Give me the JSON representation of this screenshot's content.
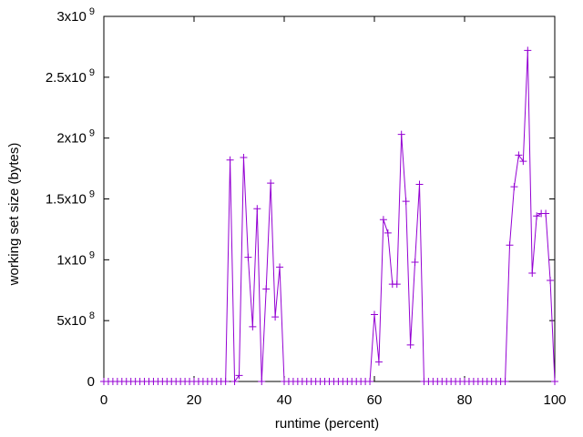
{
  "chart_data": {
    "type": "line",
    "title": "",
    "xlabel": "runtime (percent)",
    "ylabel": "working set size (bytes)",
    "xlim": [
      0,
      100
    ],
    "ylim": [
      0,
      3000000000
    ],
    "grid": false,
    "legend": "none",
    "color": "#9400d3",
    "marker": "plus",
    "x_ticks": [
      {
        "value": 0,
        "label": "0"
      },
      {
        "value": 20,
        "label": "20"
      },
      {
        "value": 40,
        "label": "40"
      },
      {
        "value": 60,
        "label": "60"
      },
      {
        "value": 80,
        "label": "80"
      },
      {
        "value": 100,
        "label": "100"
      }
    ],
    "y_ticks": [
      {
        "value": 0,
        "mantissa": "0",
        "exponent": ""
      },
      {
        "value": 500000000,
        "mantissa": "5x10",
        "exponent": "8"
      },
      {
        "value": 1000000000,
        "mantissa": "1x10",
        "exponent": "9"
      },
      {
        "value": 1500000000,
        "mantissa": "1.5x10",
        "exponent": "9"
      },
      {
        "value": 2000000000,
        "mantissa": "2x10",
        "exponent": "9"
      },
      {
        "value": 2500000000,
        "mantissa": "2.5x10",
        "exponent": "9"
      },
      {
        "value": 3000000000,
        "mantissa": "3x10",
        "exponent": "9"
      }
    ],
    "series": [
      {
        "x": [
          0,
          1,
          2,
          3,
          4,
          5,
          6,
          7,
          8,
          9,
          10,
          11,
          12,
          13,
          14,
          15,
          16,
          17,
          18,
          19,
          20,
          21,
          22,
          23,
          24,
          25,
          26,
          27,
          28,
          29,
          30,
          31,
          32,
          33,
          34,
          35,
          36,
          37,
          38,
          39,
          40,
          41,
          42,
          43,
          44,
          45,
          46,
          47,
          48,
          49,
          50,
          51,
          52,
          53,
          54,
          55,
          56,
          57,
          58,
          59,
          60,
          61,
          62,
          63,
          64,
          65,
          66,
          67,
          68,
          69,
          70,
          71,
          72,
          73,
          74,
          75,
          76,
          77,
          78,
          79,
          80,
          81,
          82,
          83,
          84,
          85,
          86,
          87,
          88,
          89,
          90,
          91,
          92,
          93,
          94,
          95,
          96,
          97,
          98,
          99,
          100
        ],
        "y": [
          0,
          0,
          0,
          0,
          0,
          0,
          0,
          0,
          0,
          0,
          0,
          0,
          0,
          0,
          0,
          0,
          0,
          0,
          0,
          0,
          0,
          0,
          0,
          0,
          0,
          0,
          0,
          0,
          1820000000,
          0,
          50000000,
          1840000000,
          1020000000,
          450000000,
          1420000000,
          0,
          760000000,
          1630000000,
          530000000,
          940000000,
          0,
          0,
          0,
          0,
          0,
          0,
          0,
          0,
          0,
          0,
          0,
          0,
          0,
          0,
          0,
          0,
          0,
          0,
          0,
          0,
          550000000,
          160000000,
          1330000000,
          1220000000,
          800000000,
          800000000,
          2030000000,
          1480000000,
          300000000,
          980000000,
          1620000000,
          0,
          0,
          0,
          0,
          0,
          0,
          0,
          0,
          0,
          0,
          0,
          0,
          0,
          0,
          0,
          0,
          0,
          0,
          0,
          1120000000,
          1600000000,
          1860000000,
          1810000000,
          2720000000,
          890000000,
          1360000000,
          1380000000,
          1380000000,
          830000000,
          0
        ]
      }
    ]
  }
}
